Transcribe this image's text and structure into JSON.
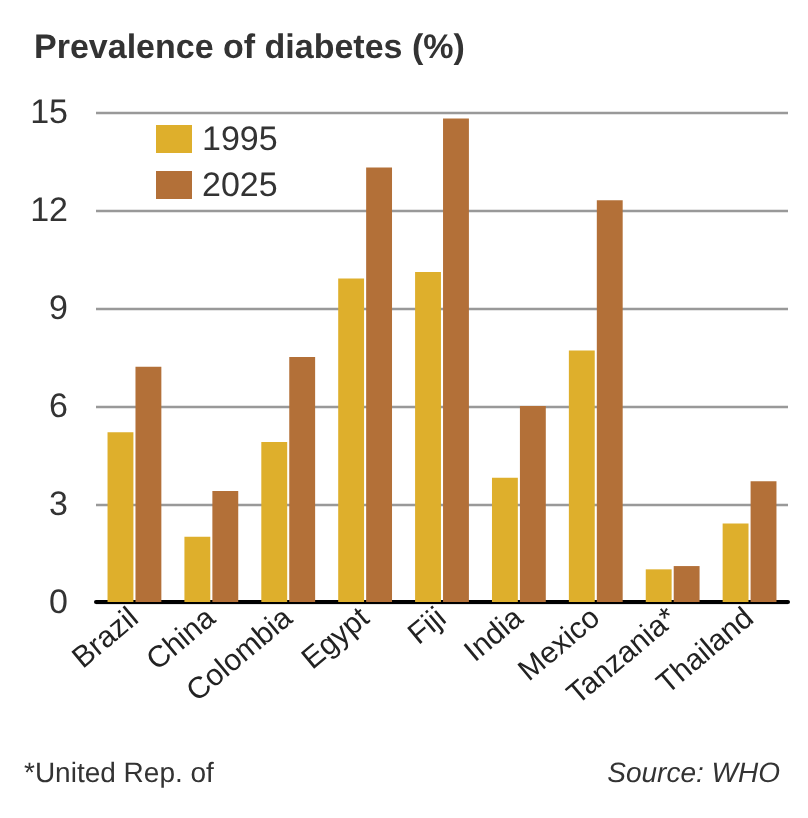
{
  "chart_data": {
    "type": "bar",
    "title": "Prevalence of diabetes (%)",
    "categories": [
      "Brazil",
      "China",
      "Colombia",
      "Egypt",
      "Fiji",
      "India",
      "Mexico",
      "Tanzania*",
      "Thailand"
    ],
    "series": [
      {
        "name": "1995",
        "color": "#deaf2c",
        "values": [
          5.2,
          2.0,
          4.9,
          9.9,
          10.1,
          3.8,
          7.7,
          1.0,
          2.4
        ]
      },
      {
        "name": "2025",
        "color": "#b37038",
        "values": [
          7.2,
          3.4,
          7.5,
          13.3,
          14.8,
          6.0,
          12.3,
          1.1,
          3.7
        ]
      }
    ],
    "ylim": [
      0,
      15
    ],
    "yticks": [
      0,
      3,
      6,
      9,
      12,
      15
    ],
    "grid": "y",
    "legend": "top left",
    "annotations": [
      "*United Rep. of",
      "Source: WHO"
    ]
  }
}
